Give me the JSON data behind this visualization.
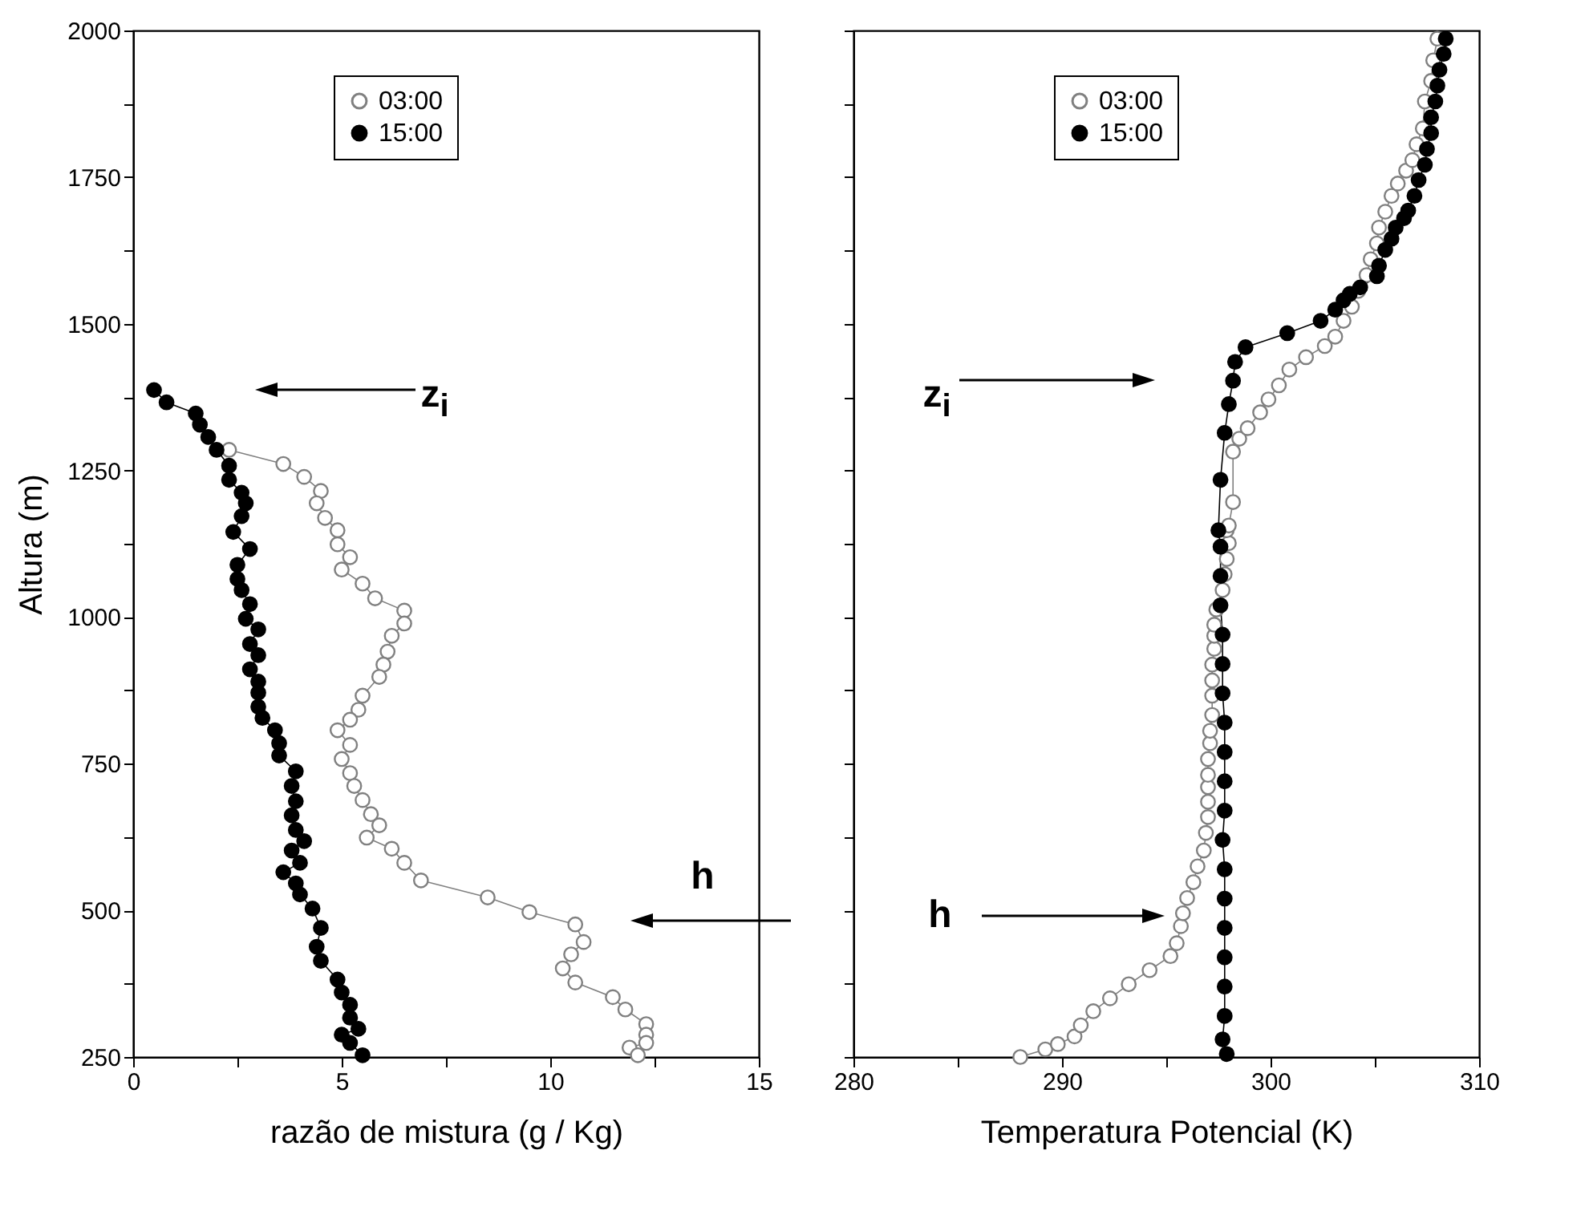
{
  "chart_data": [
    {
      "type": "line",
      "xlabel": "razão de mistura (g / Kg)",
      "ylabel": "Altura (m)",
      "xlim": [
        0,
        15
      ],
      "ylim": [
        250,
        2000
      ],
      "xticks": [
        0,
        {
          "value": 2.5,
          "label": null
        },
        5,
        {
          "value": 7.5,
          "label": null
        },
        10,
        {
          "value": 12.5,
          "label": null
        },
        15
      ],
      "yticks": [
        250,
        {
          "value": 375,
          "label": null
        },
        500,
        {
          "value": 625,
          "label": null
        },
        750,
        {
          "value": 875,
          "label": null
        },
        1000,
        {
          "value": 1125,
          "label": null
        },
        1250,
        {
          "value": 1375,
          "label": null
        },
        1500,
        {
          "value": 1625,
          "label": null
        },
        1750,
        {
          "value": 1875,
          "label": null
        },
        2000
      ],
      "marker": "circle",
      "legend": "top",
      "series": [
        {
          "name": "03:00",
          "color": "#808080",
          "x": [
            2.3,
            3.6,
            4.1,
            4.5,
            4.4,
            4.6,
            4.9,
            4.9,
            5.2,
            5.0,
            5.5,
            5.8,
            6.5,
            6.5,
            6.2,
            6.1,
            6.0,
            5.9,
            5.5,
            5.4,
            5.2,
            4.9,
            5.2,
            5.0,
            5.2,
            5.3,
            5.5,
            5.7,
            5.9,
            5.6,
            6.2,
            6.5,
            6.9,
            8.5,
            9.5,
            10.6,
            10.8,
            10.5,
            10.3,
            10.6,
            11.5,
            11.8,
            12.3,
            12.3,
            12.3,
            11.9,
            12.1
          ],
          "values": [
            1285,
            1261,
            1239,
            1215,
            1194,
            1169,
            1148,
            1124,
            1102,
            1081,
            1057,
            1032,
            1011,
            989,
            968,
            941,
            919,
            898,
            866,
            842,
            825,
            807,
            782,
            758,
            734,
            712,
            688,
            664,
            645,
            624,
            605,
            581,
            551,
            522,
            497,
            476,
            446,
            425,
            401,
            377,
            352,
            331,
            306,
            288,
            274,
            266,
            253
          ]
        },
        {
          "name": "15:00",
          "color": "#000000",
          "x": [
            0.5,
            0.8,
            1.5,
            1.6,
            1.8,
            2.0,
            2.3,
            2.3,
            2.6,
            2.7,
            2.6,
            2.4,
            2.8,
            2.5,
            2.5,
            2.6,
            2.8,
            2.7,
            3.0,
            2.8,
            3.0,
            2.8,
            3.0,
            3.0,
            3.0,
            3.1,
            3.4,
            3.5,
            3.5,
            3.9,
            3.8,
            3.9,
            3.8,
            3.9,
            4.1,
            3.8,
            4.0,
            3.6,
            3.9,
            4.0,
            4.3,
            4.5,
            4.4,
            4.5,
            4.9,
            5.0,
            5.2,
            5.2,
            5.4,
            5.0,
            5.2,
            5.5
          ],
          "values": [
            1387,
            1366,
            1347,
            1328,
            1307,
            1285,
            1258,
            1234,
            1212,
            1194,
            1172,
            1145,
            1116,
            1089,
            1065,
            1046,
            1022,
            997,
            979,
            954,
            935,
            911,
            890,
            871,
            847,
            828,
            807,
            785,
            764,
            737,
            712,
            686,
            662,
            637,
            618,
            602,
            581,
            565,
            546,
            527,
            503,
            470,
            438,
            414,
            382,
            360,
            339,
            317,
            298,
            288,
            274,
            253
          ]
        }
      ],
      "annotations": [
        "z$_{i}$",
        "h"
      ]
    },
    {
      "type": "line",
      "xlabel": "Temperatura Potencial (K)",
      "xlim": [
        280,
        310
      ],
      "ylim": [
        250,
        2000
      ],
      "xticks": [
        280,
        {
          "value": 285,
          "label": null
        },
        290,
        {
          "value": 295,
          "label": null
        },
        300,
        {
          "value": 305,
          "label": null
        },
        310
      ],
      "yticks": [
        250,
        {
          "value": 375,
          "label": null
        },
        500,
        {
          "value": 625,
          "label": null
        },
        750,
        {
          "value": 875,
          "label": null
        },
        1000,
        {
          "value": 1125,
          "label": null
        },
        1250,
        {
          "value": 1375,
          "label": null
        },
        1500,
        {
          "value": 1625,
          "label": null
        },
        1750,
        {
          "value": 1875,
          "label": null
        },
        2000
      ],
      "tick_labels": "x",
      "marker": "circle",
      "legend": "top",
      "series": [
        {
          "name": "03:00",
          "color": "#808080",
          "x": [
            288.0,
            289.2,
            289.8,
            290.6,
            290.9,
            291.5,
            292.3,
            293.2,
            294.2,
            295.2,
            295.5,
            295.7,
            295.8,
            296.0,
            296.3,
            296.5,
            296.8,
            296.9,
            297.0,
            297.0,
            297.0,
            297.0,
            297.0,
            297.1,
            297.1,
            297.2,
            297.2,
            297.2,
            297.2,
            297.3,
            297.3,
            297.3,
            297.4,
            297.7,
            297.8,
            297.9,
            298.0,
            297.9,
            298.0,
            298.2,
            298.2,
            298.5,
            298.9,
            299.5,
            299.9,
            300.4,
            300.9,
            301.7,
            302.6,
            303.1,
            303.5,
            303.9,
            304.2,
            304.6,
            304.8,
            305.1,
            305.2,
            305.5,
            305.8,
            306.1,
            306.5,
            306.8,
            307.0,
            307.3,
            307.4,
            307.7,
            307.8,
            308.0
          ],
          "values": [
            250,
            263,
            272,
            285,
            304,
            328,
            350,
            374,
            398,
            422,
            444,
            473,
            495,
            521,
            548,
            575,
            602,
            632,
            659,
            685,
            710,
            731,
            758,
            785,
            806,
            833,
            866,
            892,
            919,
            946,
            968,
            987,
            1013,
            1046,
            1073,
            1099,
            1126,
            1148,
            1156,
            1196,
            1282,
            1304,
            1322,
            1349,
            1371,
            1395,
            1422,
            1443,
            1462,
            1478,
            1505,
            1529,
            1556,
            1583,
            1610,
            1637,
            1664,
            1691,
            1718,
            1739,
            1761,
            1779,
            1806,
            1833,
            1879,
            1914,
            1949,
            1986
          ]
        },
        {
          "name": "15:00",
          "color": "#000000",
          "x": [
            297.9,
            297.7,
            297.8,
            297.8,
            297.8,
            297.8,
            297.8,
            297.8,
            297.7,
            297.8,
            297.8,
            297.8,
            297.8,
            297.7,
            297.7,
            297.7,
            297.6,
            297.6,
            297.6,
            297.5,
            297.6,
            297.8,
            298.0,
            298.2,
            298.3,
            298.8,
            300.8,
            302.4,
            303.1,
            303.5,
            303.8,
            304.3,
            305.1,
            305.2,
            305.5,
            305.8,
            306.0,
            306.4,
            306.6,
            306.9,
            307.1,
            307.4,
            307.5,
            307.7,
            307.7,
            307.9,
            308.0,
            308.1,
            308.3,
            308.4
          ],
          "values": [
            255,
            280,
            320,
            370,
            420,
            470,
            520,
            570,
            620,
            670,
            720,
            770,
            820,
            870,
            920,
            970,
            1020,
            1070,
            1120,
            1148,
            1234,
            1314,
            1363,
            1403,
            1435,
            1460,
            1484,
            1505,
            1524,
            1540,
            1551,
            1562,
            1581,
            1599,
            1626,
            1645,
            1664,
            1680,
            1693,
            1718,
            1745,
            1771,
            1798,
            1825,
            1852,
            1879,
            1906,
            1933,
            1960,
            1986
          ]
        }
      ],
      "annotations": [
        "z$_{i}$",
        "h"
      ]
    }
  ]
}
